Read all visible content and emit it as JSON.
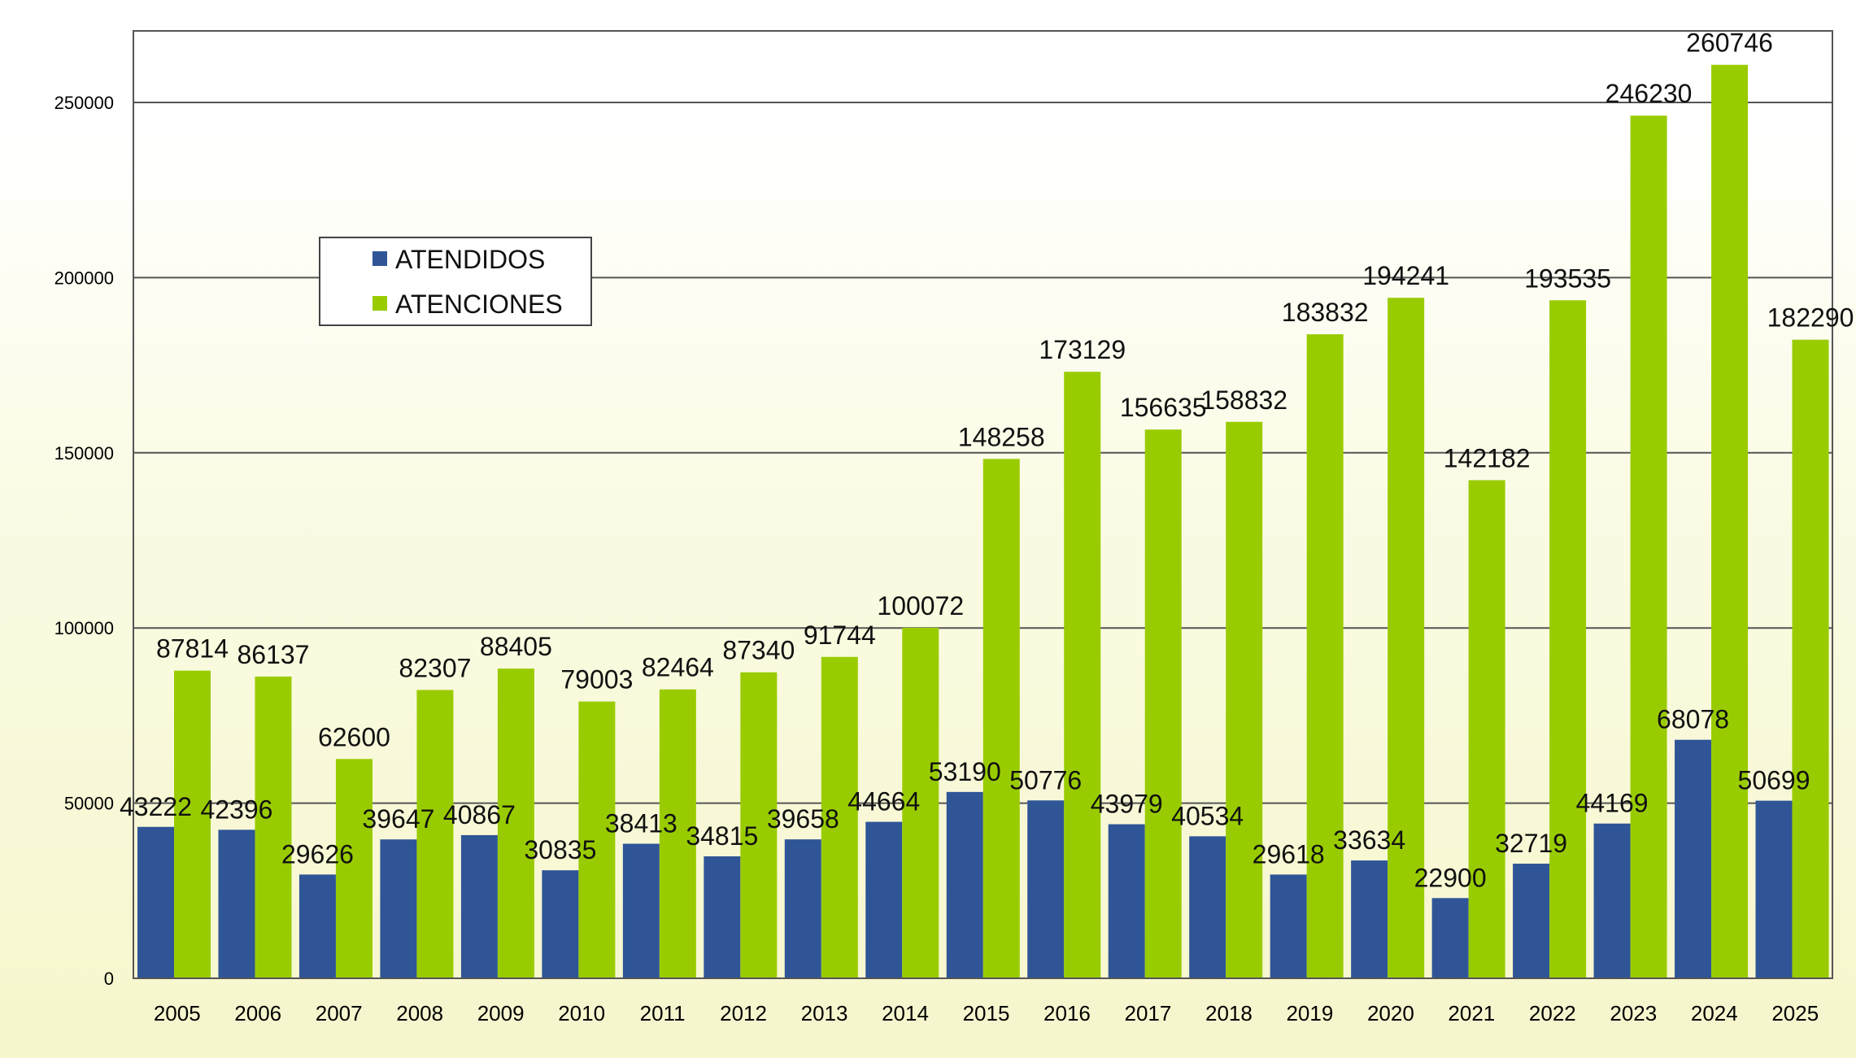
{
  "chart_data": {
    "type": "bar",
    "categories": [
      "2005",
      "2006",
      "2007",
      "2008",
      "2009",
      "2010",
      "2011",
      "2012",
      "2013",
      "2014",
      "2015",
      "2016",
      "2017",
      "2018",
      "2019",
      "2020",
      "2021",
      "2022",
      "2023",
      "2024",
      "2025"
    ],
    "series": [
      {
        "name": "ATENDIDOS",
        "color": "#2f5597",
        "values": [
          43222,
          42396,
          29626,
          39647,
          40867,
          30835,
          38413,
          34815,
          39658,
          44664,
          53190,
          50776,
          43979,
          40534,
          29618,
          33634,
          22900,
          32719,
          44169,
          68078,
          50699
        ]
      },
      {
        "name": "ATENCIONES",
        "color": "#99cc00",
        "values": [
          87814,
          86137,
          62600,
          82307,
          88405,
          79003,
          82464,
          87340,
          91744,
          100072,
          148258,
          173129,
          156635,
          158832,
          183832,
          194241,
          142182,
          193535,
          246230,
          260746,
          182290
        ]
      }
    ],
    "ylim": [
      0,
      270000
    ],
    "yticks": [
      0,
      50000,
      100000,
      150000,
      200000,
      250000
    ],
    "ytick_labels": [
      "0",
      "50000",
      "100000",
      "150000",
      "200000",
      "250000"
    ],
    "grid": true,
    "legend_position": "upper-left",
    "title": "",
    "xlabel": "",
    "ylabel": ""
  }
}
